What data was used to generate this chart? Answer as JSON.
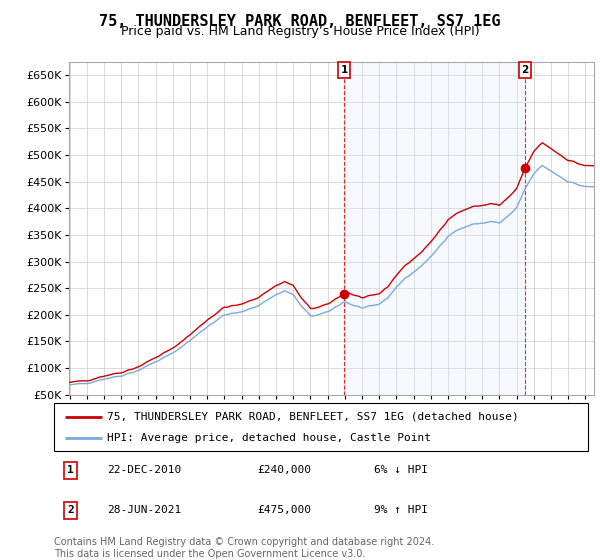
{
  "title": "75, THUNDERSLEY PARK ROAD, BENFLEET, SS7 1EG",
  "subtitle": "Price paid vs. HM Land Registry’s House Price Index (HPI)",
  "ylim": [
    50000,
    675000
  ],
  "yticks": [
    50000,
    100000,
    150000,
    200000,
    250000,
    300000,
    350000,
    400000,
    450000,
    500000,
    550000,
    600000,
    650000
  ],
  "background_color": "#ffffff",
  "grid_color": "#cccccc",
  "hpi_color": "#7aaadd",
  "property_color": "#cc0000",
  "shade_color": "#ddeeff",
  "vline_color": "#cc0000",
  "sale_dates_decimal": [
    2010.97,
    2021.49
  ],
  "sale_values": [
    240000,
    475000
  ],
  "sale_labels": [
    "1",
    "2"
  ],
  "legend_label_property": "75, THUNDERSLEY PARK ROAD, BENFLEET, SS7 1EG (detached house)",
  "legend_label_hpi": "HPI: Average price, detached house, Castle Point",
  "annotation1_label": "1",
  "annotation1_date": "22-DEC-2010",
  "annotation1_price": "£240,000",
  "annotation1_hpi": "6% ↓ HPI",
  "annotation2_label": "2",
  "annotation2_date": "28-JUN-2021",
  "annotation2_price": "£475,000",
  "annotation2_hpi": "9% ↑ HPI",
  "footer_text": "Contains HM Land Registry data © Crown copyright and database right 2024.\nThis data is licensed under the Open Government Licence v3.0.",
  "title_fontsize": 11,
  "subtitle_fontsize": 9,
  "tick_fontsize": 8,
  "legend_fontsize": 8,
  "annotation_fontsize": 8,
  "footer_fontsize": 7
}
